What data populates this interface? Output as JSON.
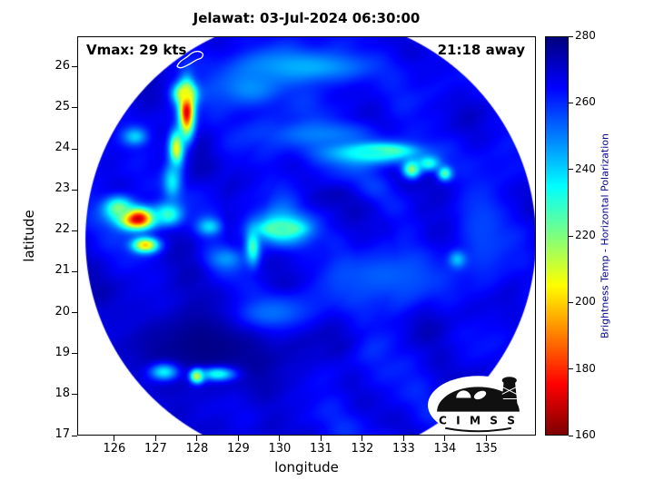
{
  "title": "Jelawat: 03-Jul-2024 06:30:00",
  "annotations": {
    "vmax": "Vmax: 29 kts",
    "time_away": "21:18 away"
  },
  "axes": {
    "xlabel": "longitude",
    "ylabel": "latitude",
    "x_ticks": [
      126,
      127,
      128,
      129,
      130,
      131,
      132,
      133,
      134,
      135
    ],
    "y_ticks": [
      17,
      18,
      19,
      20,
      21,
      22,
      23,
      24,
      25,
      26
    ],
    "xlim": [
      125.1,
      136.2
    ],
    "ylim": [
      17,
      26.75
    ]
  },
  "colorbar": {
    "label": "Brightness Temp - Horizontal Polarization",
    "ticks": [
      160,
      180,
      200,
      220,
      240,
      260,
      280
    ],
    "min": 160,
    "max": 280,
    "label_color": "#00008b",
    "colormap": "jet_reversed"
  },
  "logo": {
    "text": "C I M S S"
  },
  "chart_data": {
    "type": "heatmap",
    "title": "Jelawat: 03-Jul-2024 06:30:00",
    "xlabel": "longitude",
    "ylabel": "latitude",
    "xlim": [
      125.1,
      136.2
    ],
    "ylim": [
      17,
      26.75
    ],
    "value_label": "Brightness Temp - Horizontal Polarization",
    "value_range": [
      160,
      280
    ],
    "colormap": "jet_reversed",
    "storm": {
      "name": "Jelawat",
      "vmax_kts": 29,
      "timestamp": "03-Jul-2024 06:30:00",
      "time_away": "21:18 away"
    },
    "swath": {
      "center_lon": 130.75,
      "center_lat": 21.8,
      "radius_deg": 5.45
    },
    "base_temp": 267,
    "features": [
      {
        "lon": 127.75,
        "lat": 24.95,
        "t": 168,
        "sx": 0.13,
        "sy": 0.45
      },
      {
        "lon": 127.7,
        "lat": 25.35,
        "t": 205,
        "sx": 0.2,
        "sy": 0.18
      },
      {
        "lon": 127.5,
        "lat": 24.0,
        "t": 205,
        "sx": 0.12,
        "sy": 0.3
      },
      {
        "lon": 126.5,
        "lat": 24.3,
        "t": 240,
        "sx": 0.2,
        "sy": 0.15
      },
      {
        "lon": 126.55,
        "lat": 22.3,
        "t": 162,
        "sx": 0.3,
        "sy": 0.18
      },
      {
        "lon": 126.1,
        "lat": 22.55,
        "t": 220,
        "sx": 0.25,
        "sy": 0.2
      },
      {
        "lon": 126.75,
        "lat": 21.65,
        "t": 198,
        "sx": 0.22,
        "sy": 0.13
      },
      {
        "lon": 127.3,
        "lat": 22.4,
        "t": 228,
        "sx": 0.25,
        "sy": 0.2
      },
      {
        "lon": 127.4,
        "lat": 23.2,
        "t": 236,
        "sx": 0.15,
        "sy": 0.3
      },
      {
        "lon": 128.3,
        "lat": 22.1,
        "t": 238,
        "sx": 0.2,
        "sy": 0.15
      },
      {
        "lon": 128.7,
        "lat": 21.3,
        "t": 245,
        "sx": 0.3,
        "sy": 0.2
      },
      {
        "lon": 129.35,
        "lat": 21.6,
        "t": 225,
        "sx": 0.12,
        "sy": 0.3
      },
      {
        "lon": 130.05,
        "lat": 22.05,
        "t": 170,
        "sx": 0.28,
        "sy": 0.1
      },
      {
        "lon": 130.05,
        "lat": 22.05,
        "t": 228,
        "sx": 0.5,
        "sy": 0.28
      },
      {
        "lon": 132.4,
        "lat": 23.95,
        "t": 172,
        "sx": 0.45,
        "sy": 0.1
      },
      {
        "lon": 132.2,
        "lat": 23.9,
        "t": 232,
        "sx": 0.85,
        "sy": 0.22
      },
      {
        "lon": 133.2,
        "lat": 23.5,
        "t": 218,
        "sx": 0.15,
        "sy": 0.15
      },
      {
        "lon": 133.6,
        "lat": 23.65,
        "t": 230,
        "sx": 0.2,
        "sy": 0.13
      },
      {
        "lon": 134.0,
        "lat": 23.4,
        "t": 224,
        "sx": 0.12,
        "sy": 0.12
      },
      {
        "lon": 130.6,
        "lat": 26.0,
        "t": 244,
        "sx": 1.3,
        "sy": 0.3
      },
      {
        "lon": 129.3,
        "lat": 25.5,
        "t": 248,
        "sx": 0.6,
        "sy": 0.35
      },
      {
        "lon": 131.0,
        "lat": 24.35,
        "t": 250,
        "sx": 1.0,
        "sy": 0.25
      },
      {
        "lon": 128.2,
        "lat": 19.2,
        "t": 279,
        "sx": 1.3,
        "sy": 0.9
      },
      {
        "lon": 127.2,
        "lat": 18.55,
        "t": 236,
        "sx": 0.25,
        "sy": 0.15
      },
      {
        "lon": 128.0,
        "lat": 18.45,
        "t": 206,
        "sx": 0.12,
        "sy": 0.12
      },
      {
        "lon": 128.5,
        "lat": 18.5,
        "t": 232,
        "sx": 0.3,
        "sy": 0.12
      },
      {
        "lon": 129.8,
        "lat": 20.0,
        "t": 252,
        "sx": 0.7,
        "sy": 0.3
      },
      {
        "lon": 132.5,
        "lat": 20.9,
        "t": 254,
        "sx": 1.2,
        "sy": 0.5
      },
      {
        "lon": 134.9,
        "lat": 22.0,
        "t": 257,
        "sx": 0.4,
        "sy": 1.0
      },
      {
        "lon": 134.3,
        "lat": 21.3,
        "t": 242,
        "sx": 0.15,
        "sy": 0.15
      }
    ]
  }
}
